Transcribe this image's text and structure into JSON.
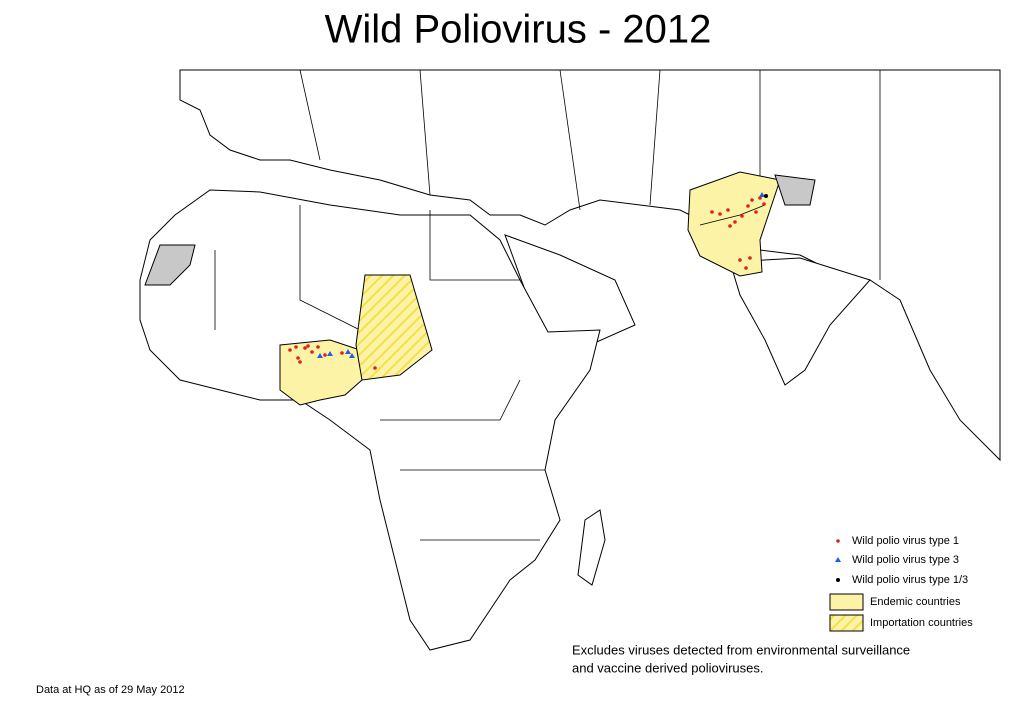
{
  "title": "Wild Poliovirus - 2012",
  "legend": {
    "items": [
      {
        "label": "Wild polio virus type 1",
        "color": "#e02020"
      },
      {
        "label": "Wild polio virus type 3",
        "color": "#2060e0"
      },
      {
        "label": "Wild polio virus type 1/3",
        "color": "#000000"
      },
      {
        "label": "Endemic countries",
        "color": "#fdf3a6"
      },
      {
        "label": "Importation countries",
        "color": "#f3e04a"
      }
    ]
  },
  "note": [
    "Excludes viruses detected from environmental surveillance",
    "and vaccine derived polioviruses."
  ],
  "footer": "Data at HQ as of 29 May 2012"
}
